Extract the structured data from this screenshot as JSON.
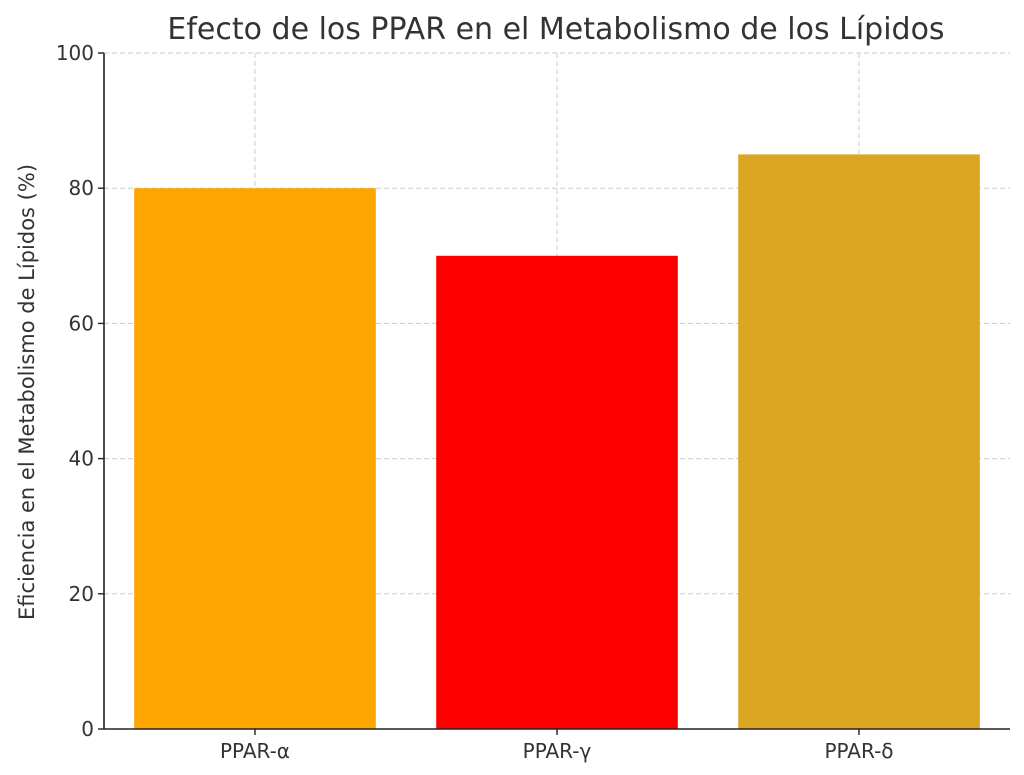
{
  "chart_data": {
    "type": "bar",
    "title": "Efecto de los PPAR en el Metabolismo de los Lípidos",
    "xlabel": "",
    "ylabel": "Eficiencia en el Metabolismo de Lípidos (%)",
    "categories": [
      "PPAR-α",
      "PPAR-γ",
      "PPAR-δ"
    ],
    "values": [
      80,
      70,
      85
    ],
    "colors": [
      "#FFA500",
      "#FF0000",
      "#DAA520"
    ],
    "ylim": [
      0,
      100
    ],
    "yticks": [
      0,
      20,
      40,
      60,
      80,
      100
    ],
    "grid": true,
    "legend": "none"
  }
}
